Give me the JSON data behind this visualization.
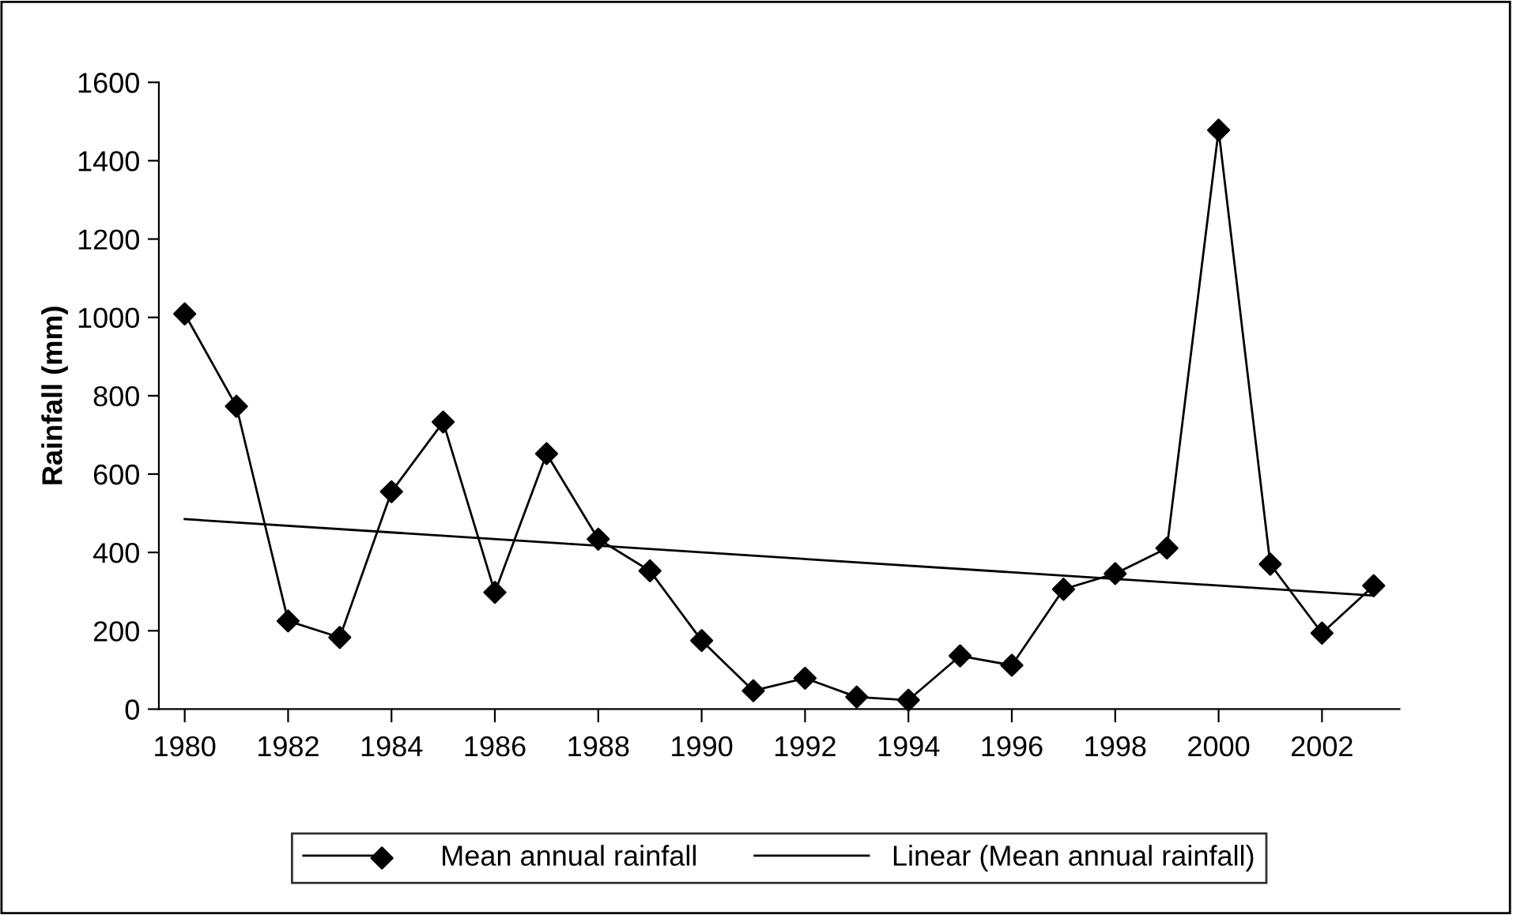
{
  "chart_data": {
    "type": "line",
    "ylabel": "Rainfall (mm)",
    "x": [
      1980,
      1981,
      1982,
      1983,
      1984,
      1985,
      1986,
      1987,
      1988,
      1989,
      1990,
      1991,
      1992,
      1993,
      1994,
      1995,
      1996,
      1997,
      1998,
      1999,
      2000,
      2001,
      2002,
      2003
    ],
    "series": [
      {
        "name": "Mean annual rainfall",
        "color": "#000000",
        "marker": "diamond",
        "values": [
          1009,
          773,
          225,
          183,
          555,
          733,
          298,
          652,
          434,
          353,
          175,
          47,
          79,
          31,
          23,
          136,
          112,
          306,
          346,
          411,
          1478,
          370,
          194,
          315
        ]
      },
      {
        "name": "Linear (Mean annual rainfall)",
        "color": "#000000",
        "marker": "none",
        "x": [
          1980,
          2003
        ],
        "values": [
          485,
          290
        ]
      }
    ],
    "xlim": [
      1979.5,
      2003.5
    ],
    "xticks": [
      1980,
      1982,
      1984,
      1986,
      1988,
      1990,
      1992,
      1994,
      1996,
      1998,
      2000,
      2002
    ],
    "ylim": [
      0,
      1600
    ],
    "yticks": [
      0,
      200,
      400,
      600,
      800,
      1000,
      1200,
      1400,
      1600
    ],
    "legend": "bottom",
    "line_style": "solid"
  }
}
